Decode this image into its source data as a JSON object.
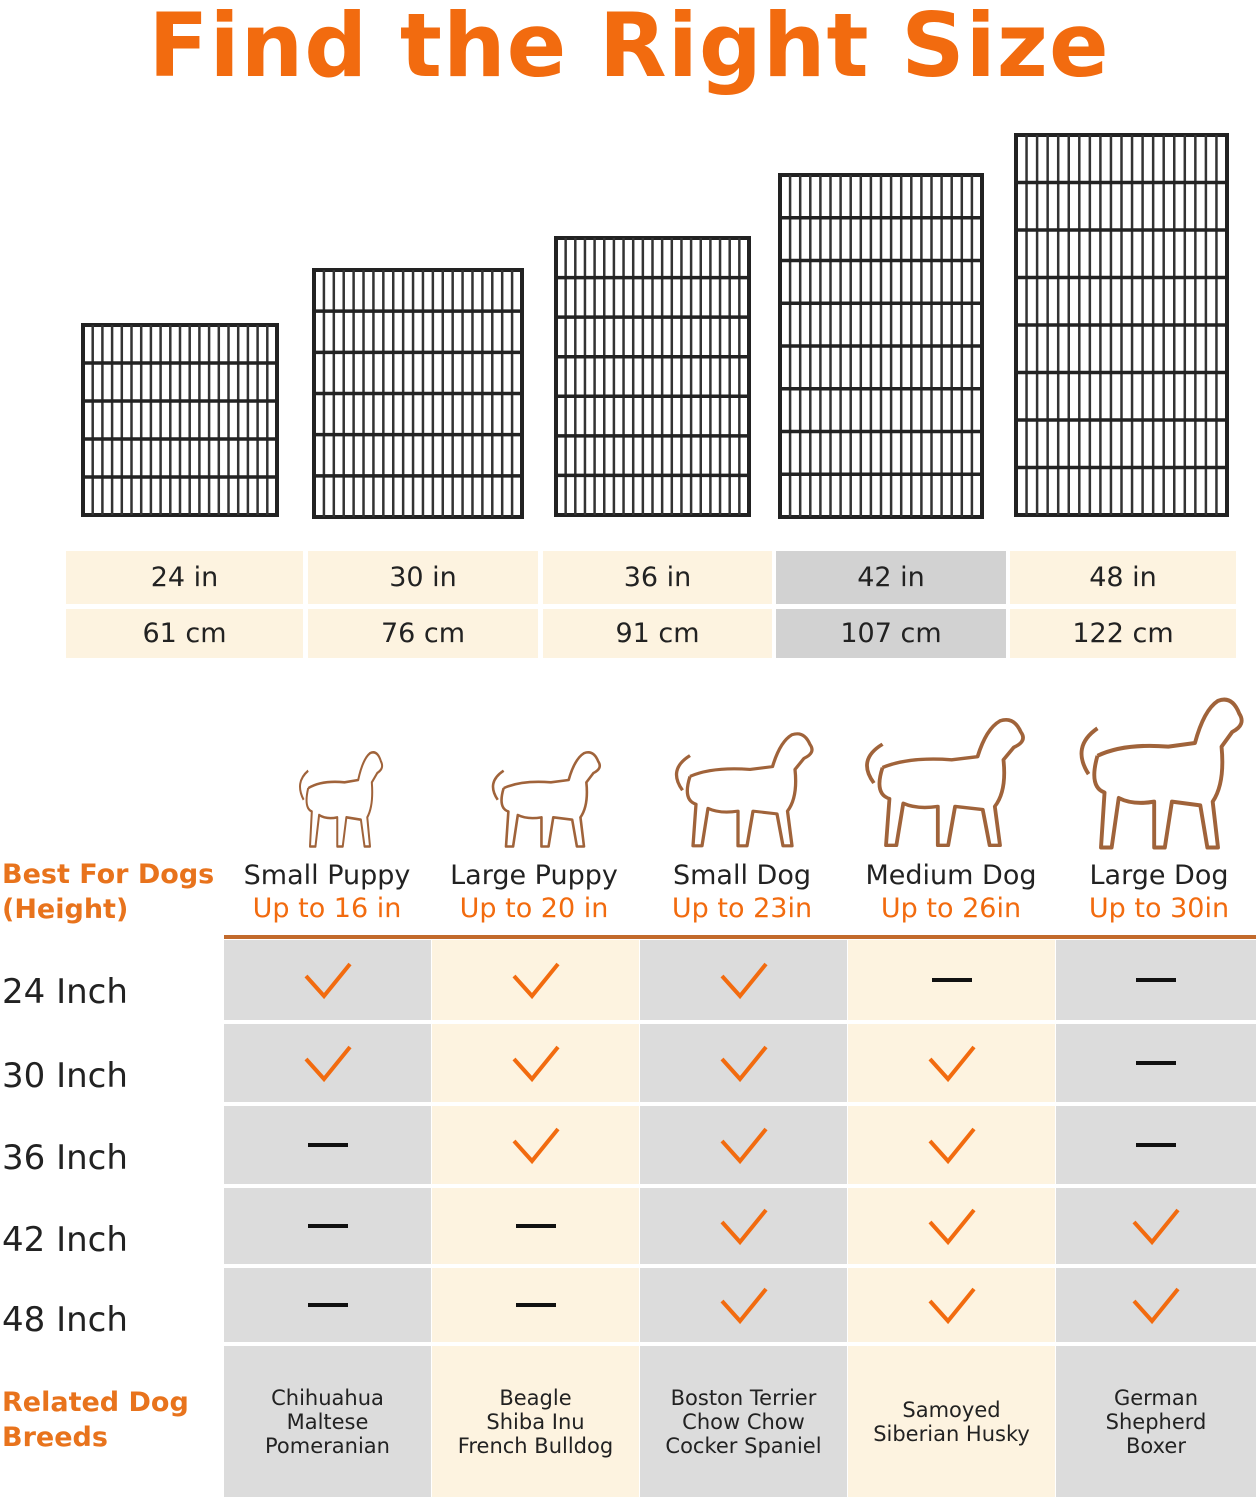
{
  "title": "Find the Right Size",
  "sizes": [
    {
      "inches": "24 in",
      "cm": "61 cm",
      "highlighted": false
    },
    {
      "inches": "30 in",
      "cm": "76 cm",
      "highlighted": false
    },
    {
      "inches": "36 in",
      "cm": "91 cm",
      "highlighted": false
    },
    {
      "inches": "42 in",
      "cm": "107 cm",
      "highlighted": true
    },
    {
      "inches": "48 in",
      "cm": "122 cm",
      "highlighted": false
    }
  ],
  "best_for_label": [
    "Best For Dogs",
    "(Height)"
  ],
  "related_label": [
    "Related Dog",
    "Breeds"
  ],
  "dogs": [
    {
      "name": "Small Puppy",
      "height": "Up to 16 in",
      "breeds": [
        "Chihuahua",
        "Maltese",
        "Pomeranian"
      ]
    },
    {
      "name": "Large Puppy",
      "height": "Up to 20 in",
      "breeds": [
        "Beagle",
        "Shiba Inu",
        "French Bulldog"
      ]
    },
    {
      "name": "Small Dog",
      "height": "Up to 23in",
      "breeds": [
        "Boston Terrier",
        "Chow Chow",
        "Cocker Spaniel"
      ]
    },
    {
      "name": "Medium Dog",
      "height": "Up to 26in",
      "breeds": [
        "Samoyed",
        "Siberian Husky"
      ]
    },
    {
      "name": "Large Dog",
      "height": "Up to 30in",
      "breeds": [
        "German",
        "Shepherd",
        "Boxer"
      ]
    }
  ],
  "rows": [
    {
      "label": "24 Inch",
      "fit": [
        true,
        true,
        true,
        false,
        false
      ]
    },
    {
      "label": "30 Inch",
      "fit": [
        true,
        true,
        true,
        true,
        false
      ]
    },
    {
      "label": "36 Inch",
      "fit": [
        false,
        true,
        true,
        true,
        false
      ]
    },
    {
      "label": "42 Inch",
      "fit": [
        false,
        false,
        true,
        true,
        true
      ]
    },
    {
      "label": "48 Inch",
      "fit": [
        false,
        false,
        true,
        true,
        true
      ]
    }
  ],
  "colors": {
    "accent": "#f26b0f",
    "cream": "#fdf3e0",
    "gray": "#dcdcdc",
    "dog_outline": "#a0633a",
    "rule": "#c26a2c"
  },
  "icons": {
    "fit": "checkmark-icon",
    "no_fit": "dash-icon",
    "crate": "wire-crate-panel-image",
    "dog": "dog-outline-icon"
  }
}
